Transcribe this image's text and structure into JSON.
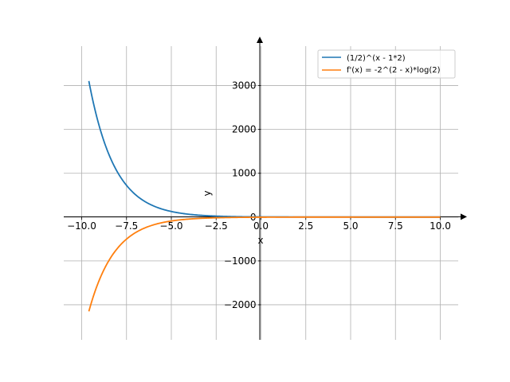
{
  "chart_data": {
    "type": "line",
    "xlabel": "x",
    "ylabel": "y",
    "xlim": [
      -11.0,
      11.0
    ],
    "ylim": [
      -2800,
      3900
    ],
    "x_ticks": [
      -10.0,
      -7.5,
      -5.0,
      -2.5,
      0.0,
      2.5,
      5.0,
      7.5,
      10.0
    ],
    "x_tick_labels": [
      "−10.0",
      "−7.5",
      "−5.0",
      "−2.5",
      "0.0",
      "2.5",
      "5.0",
      "7.5",
      "10.0"
    ],
    "y_ticks": [
      -2000,
      -1000,
      0,
      1000,
      2000,
      3000
    ],
    "y_tick_labels": [
      "−2000",
      "−1000",
      "0",
      "1000",
      "2000",
      "3000"
    ],
    "grid": true,
    "axes_through_origin": true,
    "legend_position": "upper-right",
    "x_domain": [
      -9.6,
      10.0
    ],
    "series": [
      {
        "name": "(1/2)^(x - 1*2)",
        "color": "#1f77b4",
        "expression": "2^(2 - x)"
      },
      {
        "name": "f'(x) = -2^(2 - x)*log(2)",
        "color": "#ff7f0e",
        "expression": "-2^(2 - x)*ln(2)"
      }
    ]
  }
}
